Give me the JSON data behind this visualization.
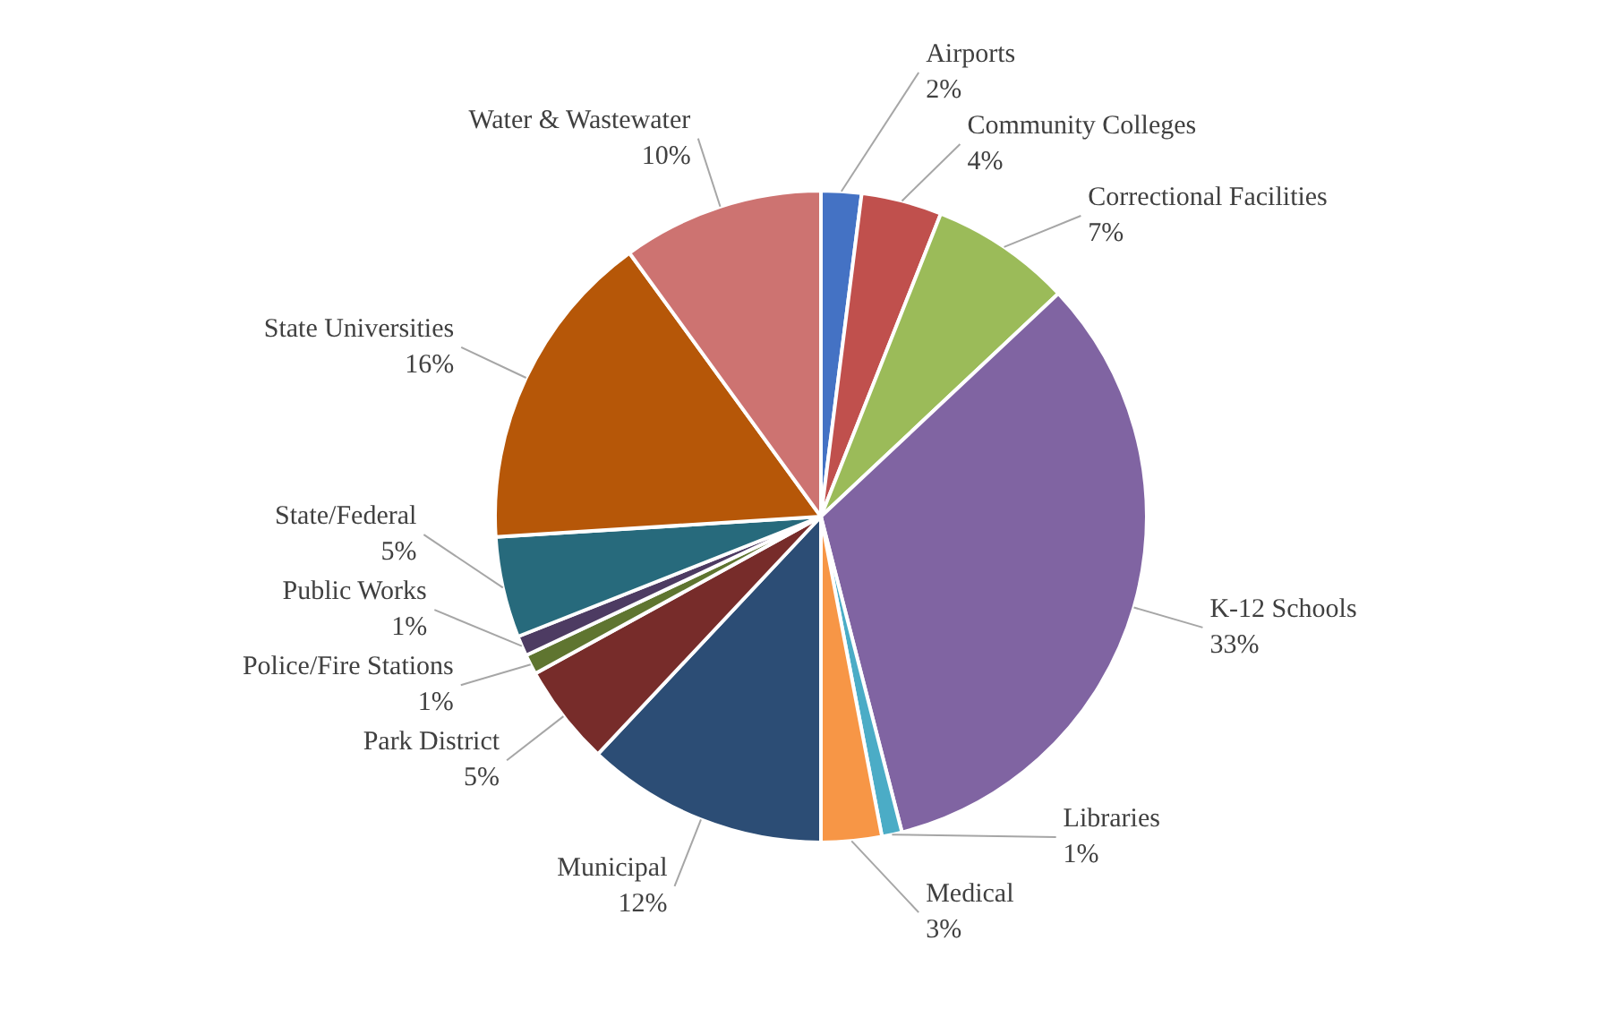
{
  "chart_data": {
    "type": "pie",
    "categories": [
      "Airports",
      "Community Colleges",
      "Correctional Facilities",
      "K-12 Schools",
      "Libraries",
      "Medical",
      "Municipal",
      "Park District",
      "Police/Fire Stations",
      "Public Works",
      "State/Federal",
      "State Universities",
      "Water & Wastewater"
    ],
    "values": [
      2,
      4,
      7,
      33,
      1,
      3,
      12,
      5,
      1,
      1,
      5,
      16,
      10
    ],
    "colors": [
      "#4472c4",
      "#c0504d",
      "#9bbb59",
      "#8064a2",
      "#4bacc6",
      "#f79646",
      "#2c4d75",
      "#772c2a",
      "#5f7530",
      "#4d3b62",
      "#276a7c",
      "#b65708",
      "#cd7371"
    ],
    "value_labels": [
      "2%",
      "4%",
      "7%",
      "33%",
      "1%",
      "3%",
      "12%",
      "5%",
      "1%",
      "1%",
      "5%",
      "16%",
      "10%"
    ]
  }
}
